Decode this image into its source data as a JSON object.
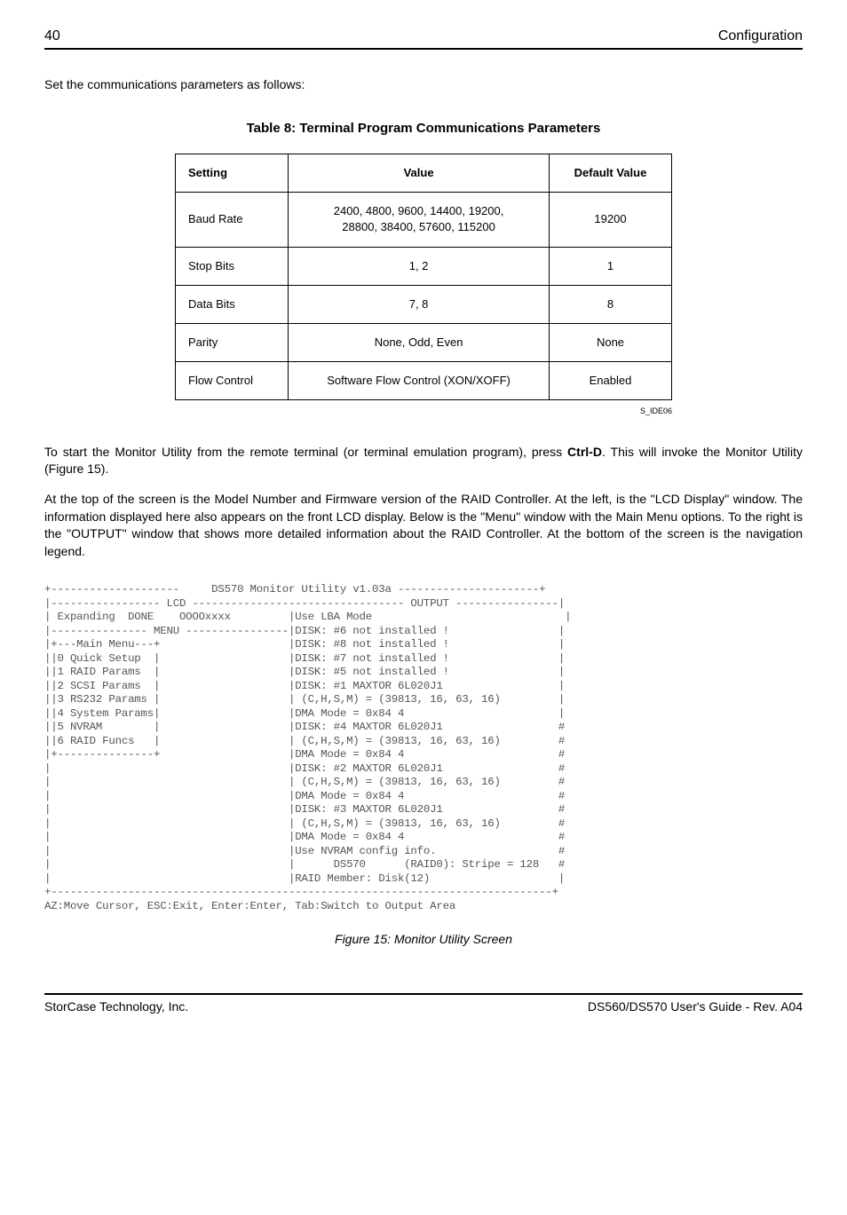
{
  "header": {
    "page": "40",
    "section": "Configuration"
  },
  "intro": "Set the communications parameters as follows:",
  "table_caption": "Table  8:   Terminal  Program  Communications  Parameters",
  "table": {
    "headers": [
      "Setting",
      "Value",
      "Default Value"
    ],
    "rows": [
      [
        "Baud Rate",
        "2400, 4800, 9600, 14400, 19200,\n28800, 38400, 57600, 115200",
        "19200"
      ],
      [
        "Stop Bits",
        "1, 2",
        "1"
      ],
      [
        "Data Bits",
        "7, 8",
        "8"
      ],
      [
        "Parity",
        "None, Odd, Even",
        "None"
      ],
      [
        "Flow Control",
        "Software Flow Control (XON/XOFF)",
        "Enabled"
      ]
    ],
    "note": "S_IDE06"
  },
  "para1a": "To start the Monitor Utility from the remote terminal (or terminal emulation program), press ",
  "para1b": "Ctrl-D",
  "para1c": ".  This will invoke the Monitor Utility (Figure 15).",
  "para2": "At the top of the screen is the Model Number and Firmware version of the RAID Controller.  At the left, is the \"LCD Display\" window.  The information displayed here also appears on the front LCD display.  Below is the \"Menu\" window with the Main Menu options.  To the right is the \"OUTPUT\" window that shows more detailed information about the RAID Controller.  At the bottom of the screen is the navigation legend.",
  "terminal": "+--------------------     DS570 Monitor Utility v1.03a ----------------------+\n|----------------- LCD --------------------------------- OUTPUT ----------------|\n| Expanding  DONE    OOOOxxxx         |Use LBA Mode                              |\n|--------------- MENU ----------------|DISK: #6 not installed !                 |\n|+---Main Menu---+                    |DISK: #8 not installed !                 |\n||0 Quick Setup  |                    |DISK: #7 not installed !                 |\n||1 RAID Params  |                    |DISK: #5 not installed !                 |\n||2 SCSI Params  |                    |DISK: #1 MAXTOR 6L020J1                  |\n||3 RS232 Params |                    | (C,H,S,M) = (39813, 16, 63, 16)         |\n||4 System Params|                    |DMA Mode = 0x84 4                        |\n||5 NVRAM        |                    |DISK: #4 MAXTOR 6L020J1                  #\n||6 RAID Funcs   |                    | (C,H,S,M) = (39813, 16, 63, 16)         #\n|+---------------+                    |DMA Mode = 0x84 4                        #\n|                                     |DISK: #2 MAXTOR 6L020J1                  #\n|                                     | (C,H,S,M) = (39813, 16, 63, 16)         #\n|                                     |DMA Mode = 0x84 4                        #\n|                                     |DISK: #3 MAXTOR 6L020J1                  #\n|                                     | (C,H,S,M) = (39813, 16, 63, 16)         #\n|                                     |DMA Mode = 0x84 4                        #\n|                                     |Use NVRAM config info.                   #\n|                                     |      DS570      (RAID0): Stripe = 128   #\n|                                     |RAID Member: Disk(12)                    |\n+------------------------------------------------------------------------------+\nAZ:Move Cursor, ESC:Exit, Enter:Enter, Tab:Switch to Output Area",
  "fig_caption": "Figure 15:  Monitor Utility Screen",
  "footer": {
    "left": "StorCase Technology, Inc.",
    "right": "DS560/DS570 User's Guide - Rev. A04"
  }
}
